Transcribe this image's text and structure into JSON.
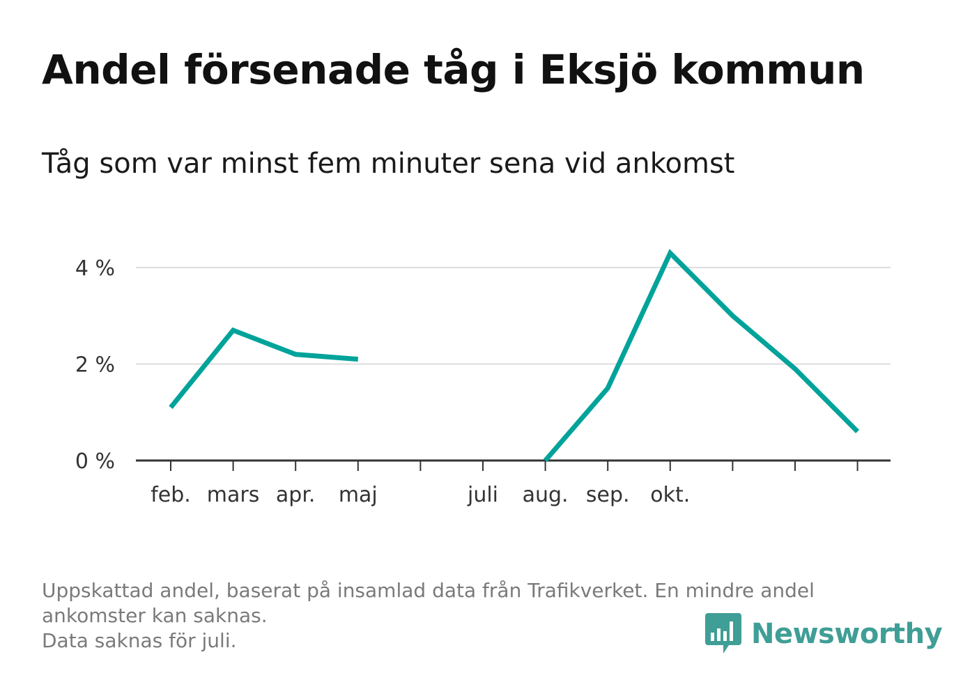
{
  "title": "Andel försenade tåg i Eksjö kommun",
  "subtitle": "Tåg som var minst fem minuter sena vid ankomst",
  "footnote": {
    "line1": "Uppskattad andel, baserat på insamlad data från Trafikverket. En mindre andel",
    "line2": "ankomster kan saknas.",
    "line3": "Data saknas för juli."
  },
  "brand": {
    "name": "Newsworthy",
    "icon": "bar-chart-speech-bubble-icon",
    "color": "#3f9e95"
  },
  "chart_data": {
    "type": "line",
    "title": "Andel försenade tåg i Eksjö kommun",
    "subtitle": "Tåg som var minst fem minuter sena vid ankomst",
    "xlabel": "",
    "ylabel": "",
    "x_index": [
      0,
      1,
      2,
      3,
      4,
      5,
      6,
      7,
      8,
      9,
      10,
      11
    ],
    "categories": [
      "feb.",
      "mars",
      "apr.",
      "maj",
      "",
      "juli",
      "aug.",
      "sep.",
      "okt.",
      "",
      "",
      ""
    ],
    "series": [
      {
        "values": [
          1.1,
          2.7,
          2.2,
          2.1,
          null,
          null,
          0.0,
          1.5,
          4.3,
          3.0,
          1.9,
          0.6
        ],
        "color": "#00a39a"
      }
    ],
    "yticks": [
      0,
      2,
      4
    ],
    "ytick_labels": [
      "0 %",
      "2 %",
      "4 %"
    ],
    "ylim": [
      0,
      4.4
    ],
    "grid": true,
    "legend": "none"
  }
}
